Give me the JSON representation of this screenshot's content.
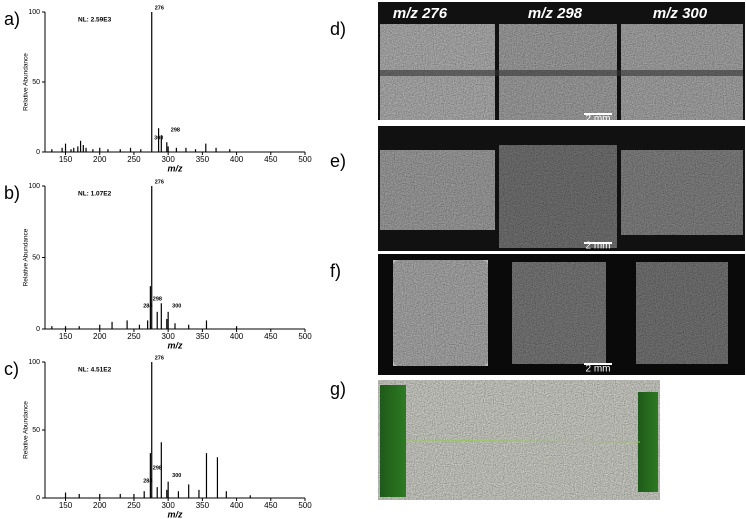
{
  "chart_data": [
    {
      "type": "bar",
      "panel_label": "a)",
      "note": "NL: 2.59E3",
      "xlabel": "m/z",
      "ylabel": "Relative Abundance",
      "x": [
        130,
        145,
        150,
        158,
        162,
        168,
        172,
        176,
        180,
        190,
        200,
        212,
        230,
        245,
        260,
        276,
        286,
        290,
        298,
        300,
        312,
        326,
        340,
        355,
        370,
        390
      ],
      "values": [
        2,
        3,
        6,
        2,
        3,
        4,
        8,
        5,
        3,
        2,
        3,
        2,
        2,
        3,
        2,
        100,
        17,
        12,
        7,
        4,
        3,
        3,
        2,
        6,
        3,
        2
      ],
      "color": "#000000",
      "xlim": [
        120,
        500
      ],
      "ylim": [
        0,
        100
      ],
      "xticks": [
        150,
        200,
        250,
        300,
        350,
        400,
        450,
        500
      ],
      "yticks": [
        0,
        50,
        100
      ],
      "peak_labels": [
        276,
        300,
        298
      ]
    },
    {
      "type": "bar",
      "panel_label": "b)",
      "note": "NL: 1.07E2",
      "xlabel": "m/z",
      "ylabel": "Relative Abundance",
      "x": [
        130,
        150,
        170,
        200,
        218,
        240,
        258,
        270,
        274,
        276,
        284,
        290,
        298,
        300,
        310,
        330,
        356,
        400
      ],
      "values": [
        2,
        2,
        2,
        3,
        5,
        6,
        3,
        6,
        30,
        100,
        12,
        18,
        7,
        12,
        4,
        3,
        6,
        2
      ],
      "color": "#000000",
      "xlim": [
        120,
        500
      ],
      "ylim": [
        0,
        100
      ],
      "xticks": [
        150,
        200,
        250,
        300,
        350,
        400,
        450,
        500
      ],
      "yticks": [
        0,
        50,
        100
      ],
      "peak_labels": [
        276,
        284,
        300,
        298
      ]
    },
    {
      "type": "bar",
      "panel_label": "c)",
      "note": "NL: 4.51E2",
      "xlabel": "m/z",
      "ylabel": "Relative Abundance",
      "x": [
        150,
        170,
        200,
        230,
        250,
        265,
        274,
        276,
        284,
        290,
        298,
        300,
        315,
        330,
        345,
        356,
        372,
        385,
        420
      ],
      "values": [
        4,
        3,
        3,
        3,
        3,
        5,
        33,
        100,
        8,
        41,
        6,
        12,
        5,
        10,
        6,
        33,
        30,
        5,
        2
      ],
      "color": "#000000",
      "xlim": [
        120,
        500
      ],
      "ylim": [
        0,
        100
      ],
      "xticks": [
        150,
        200,
        250,
        300,
        350,
        400,
        450,
        500
      ],
      "yticks": [
        0,
        50,
        100
      ],
      "peak_labels": [
        276,
        284,
        300,
        298
      ]
    }
  ],
  "panels": {
    "d": {
      "label": "d)",
      "headers": [
        "m/z 276",
        "m/z 298",
        "m/z 300"
      ],
      "scale": "2 mm"
    },
    "e": {
      "label": "e)",
      "scale": "2 mm"
    },
    "f": {
      "label": "f)",
      "scale": "2 mm"
    },
    "g": {
      "label": "g)"
    }
  }
}
